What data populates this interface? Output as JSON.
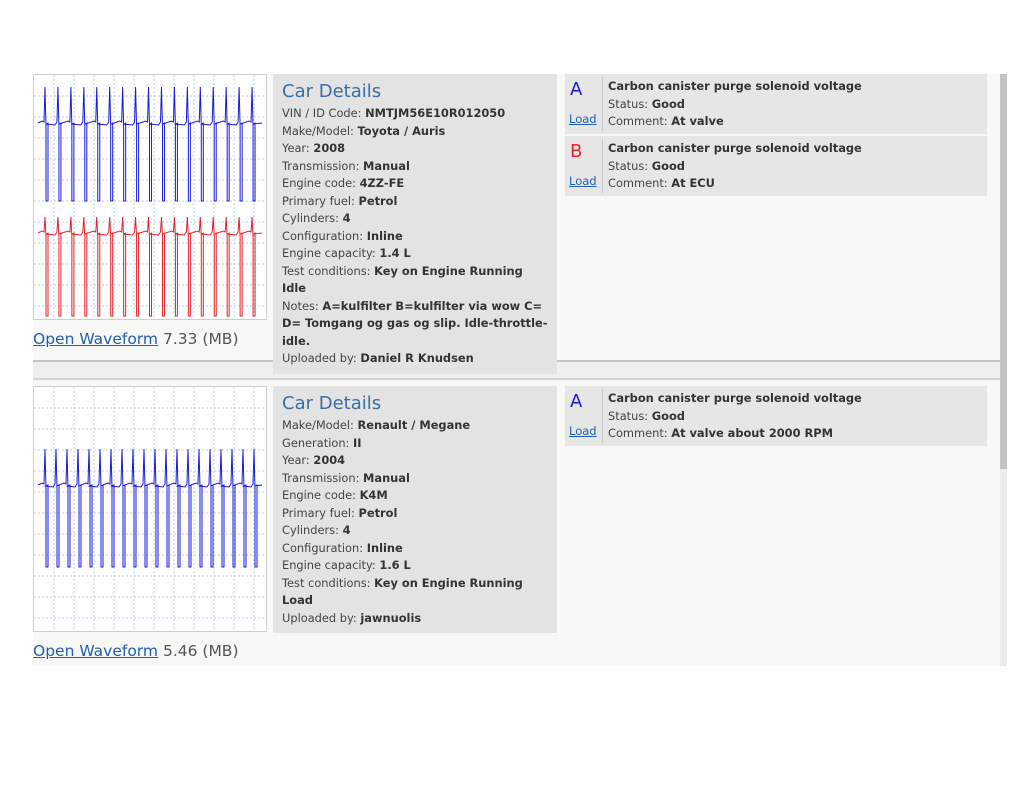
{
  "records": [
    {
      "waveform_link": "Open Waveform",
      "size": "7.33 (MB)",
      "details_title": "Car Details",
      "fields": [
        {
          "label": "VIN / ID Code:",
          "value": "NMTJM56E10R012050"
        },
        {
          "label": "Make/Model:",
          "value": "Toyota / Auris"
        },
        {
          "label": "Year:",
          "value": "2008"
        },
        {
          "label": "Transmission:",
          "value": "Manual"
        },
        {
          "label": "Engine code:",
          "value": "4ZZ-FE"
        },
        {
          "label": "Primary fuel:",
          "value": "Petrol"
        },
        {
          "label": "Cylinders:",
          "value": "4"
        },
        {
          "label": "Configuration:",
          "value": "Inline"
        },
        {
          "label": "Engine capacity:",
          "value": "1.4 L"
        },
        {
          "label": "Test conditions:",
          "value": "Key on Engine Running Idle"
        },
        {
          "label": "Notes:",
          "value": "A=kulfilter B=kulfilter via wow C= D= Tomgang og gas og slip. Idle-throttle-idle."
        },
        {
          "label": "Uploaded by:",
          "value": "Daniel R Knudsen"
        }
      ],
      "channels": [
        {
          "letter": "A",
          "color": "#1a1adf",
          "link": "Load",
          "title": "Carbon canister purge solenoid voltage",
          "status_label": "Status:",
          "status": "Good",
          "comment_label": "Comment:",
          "comment": "At valve"
        },
        {
          "letter": "B",
          "color": "#e8202a",
          "link": "Load",
          "title": "Carbon canister purge solenoid voltage",
          "status_label": "Status:",
          "status": "Good",
          "comment_label": "Comment:",
          "comment": "At ECU"
        }
      ]
    },
    {
      "waveform_link": "Open Waveform",
      "size": "5.46 (MB)",
      "details_title": "Car Details",
      "fields": [
        {
          "label": "Make/Model:",
          "value": "Renault / Megane"
        },
        {
          "label": "Generation:",
          "value": "II"
        },
        {
          "label": "Year:",
          "value": "2004"
        },
        {
          "label": "Transmission:",
          "value": "Manual"
        },
        {
          "label": "Engine code:",
          "value": "K4M"
        },
        {
          "label": "Primary fuel:",
          "value": "Petrol"
        },
        {
          "label": "Cylinders:",
          "value": "4"
        },
        {
          "label": "Configuration:",
          "value": "Inline"
        },
        {
          "label": "Engine capacity:",
          "value": "1.6 L"
        },
        {
          "label": "Test conditions:",
          "value": "Key on Engine Running Load"
        },
        {
          "label": "Uploaded by:",
          "value": "jawnuolis"
        }
      ],
      "channels": [
        {
          "letter": "A",
          "color": "#1a1adf",
          "link": "Load",
          "title": "Carbon canister purge solenoid voltage",
          "status_label": "Status:",
          "status": "Good",
          "comment_label": "Comment:",
          "comment": "At valve about 2000 RPM"
        }
      ]
    }
  ]
}
